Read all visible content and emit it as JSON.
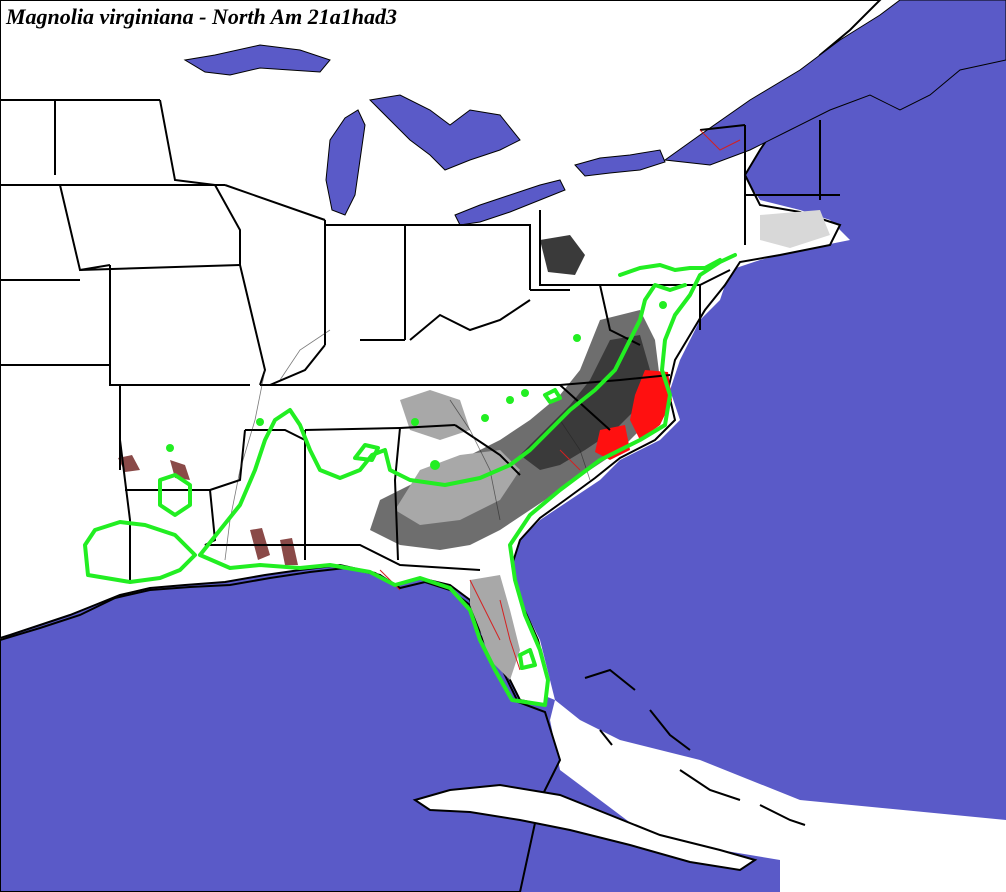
{
  "map": {
    "title": "Magnolia virginiana - North Am 21a1had3",
    "colors": {
      "water": "#5a5ac8",
      "land": "#ffffff",
      "boundary": "#000000",
      "range_outline": "#22ee22",
      "habitat_high": "#ff1010",
      "habitat_dark": "#3a3a3a",
      "habitat_mid": "#6e6e6e",
      "habitat_light": "#a8a8a8",
      "wetland": "#8a4a48",
      "stream": "#d42020"
    },
    "icons": {
      "range_outline": "range-outline",
      "habitat_shading": "habitat-suitability-shading"
    }
  }
}
